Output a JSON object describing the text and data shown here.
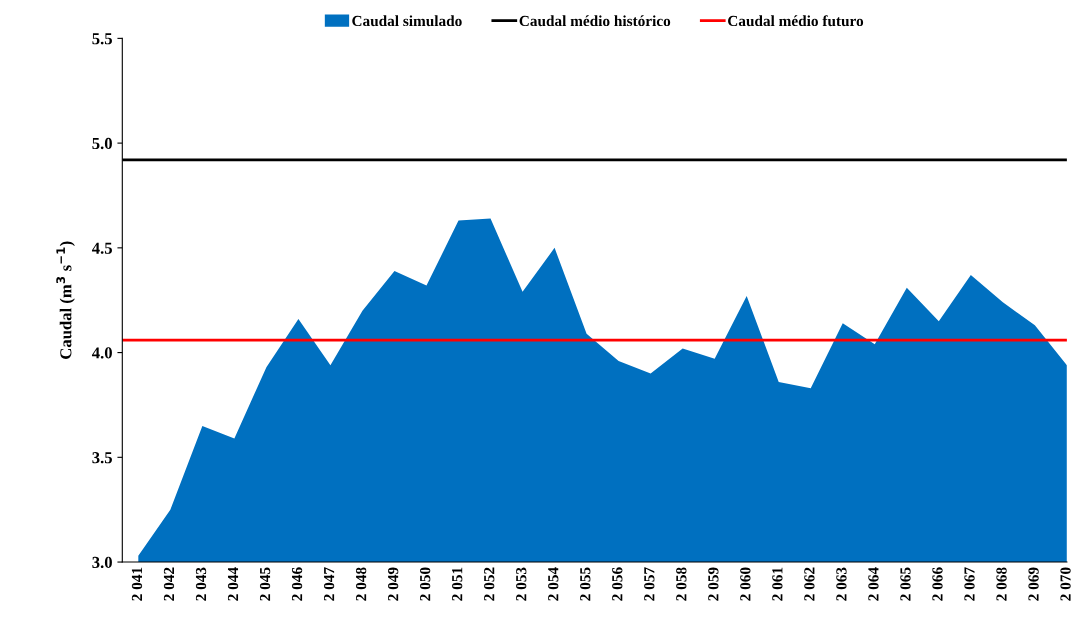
{
  "chart_data": {
    "type": "area",
    "ylabel": "Caudal (m$^{3}$ s$^{−1}$)",
    "categories": [
      "2 041",
      "2 042",
      "2 043",
      "2 044",
      "2 045",
      "2 046",
      "2 047",
      "2 048",
      "2 049",
      "2 050",
      "2 051",
      "2 052",
      "2 053",
      "2 054",
      "2 055",
      "2 056",
      "2 057",
      "2 058",
      "2 059",
      "2 060",
      "2 061",
      "2 062",
      "2 063",
      "2 064",
      "2 065",
      "2 066",
      "2 067",
      "2 068",
      "2 069",
      "2 070"
    ],
    "series": [
      {
        "name": "Caudal simulado",
        "color": "#0070c0",
        "values": [
          3.03,
          3.25,
          3.65,
          3.59,
          3.93,
          4.16,
          3.94,
          4.2,
          4.39,
          4.32,
          4.63,
          4.64,
          4.29,
          4.5,
          4.09,
          3.96,
          3.9,
          4.02,
          3.97,
          4.27,
          3.86,
          3.83,
          4.14,
          4.04,
          4.31,
          4.15,
          4.37,
          4.24,
          4.13,
          3.94
        ]
      }
    ],
    "ref_lines": [
      {
        "axis": "y",
        "value": 4.92,
        "label": "Caudal médio histórico",
        "color": "#000000"
      },
      {
        "axis": "y",
        "value": 4.06,
        "label": "Caudal médio futuro",
        "color": "#ff0000"
      }
    ],
    "ylim": [
      3.0,
      5.5
    ],
    "yticks": [
      {
        "value": 3.0,
        "label": "3.0"
      },
      {
        "value": 3.5,
        "label": "3.5"
      },
      {
        "value": 4.0,
        "label": "4.0"
      },
      {
        "value": 4.5,
        "label": "4.5"
      },
      {
        "value": 5.0,
        "label": "5.0"
      },
      {
        "value": 5.5,
        "label": "5.5"
      }
    ],
    "grid": false,
    "legend": "top"
  }
}
